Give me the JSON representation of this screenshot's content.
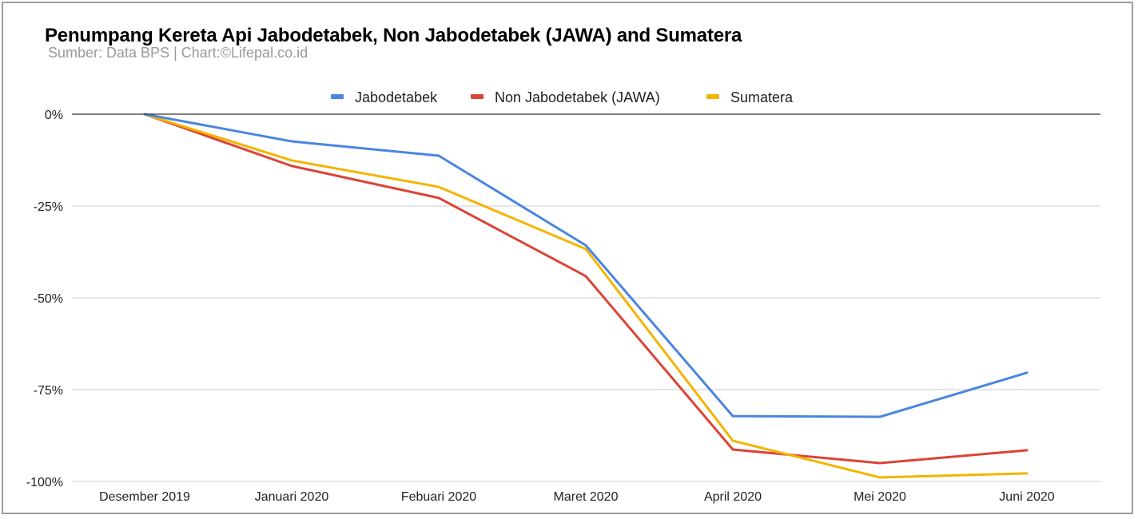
{
  "chart_data": {
    "type": "line",
    "title": "Penumpang Kereta Api Jabodetabek, Non Jabodetabek (JAWA) and Sumatera",
    "subtitle": "Sumber: Data BPS | Chart:©Lifepal.co.id",
    "xlabel": "",
    "ylabel": "",
    "categories": [
      "Desember 2019",
      "Januari 2020",
      "Febuari 2020",
      "Maret 2020",
      "April 2020",
      "Mei 2020",
      "Juni 2020"
    ],
    "ylim": [
      -100,
      0
    ],
    "yticks": [
      0,
      -25,
      -50,
      -75,
      -100
    ],
    "ytick_labels": [
      "0%",
      "-25%",
      "-50%",
      "-75%",
      "-100%"
    ],
    "grid": true,
    "legend_position": "top",
    "series": [
      {
        "name": "Jabodetabek",
        "color": "#4a86e0",
        "values": [
          0,
          -7.4,
          -11.3,
          -35.7,
          -82.2,
          -82.4,
          -70.4
        ]
      },
      {
        "name": "Non Jabodetabek (JAWA)",
        "color": "#db4437",
        "values": [
          0,
          -14.1,
          -22.8,
          -44.1,
          -91.3,
          -95.0,
          -91.5
        ]
      },
      {
        "name": "Sumatera",
        "color": "#f4b400",
        "values": [
          0,
          -12.6,
          -19.8,
          -36.7,
          -88.9,
          -98.9,
          -97.8
        ]
      }
    ]
  }
}
